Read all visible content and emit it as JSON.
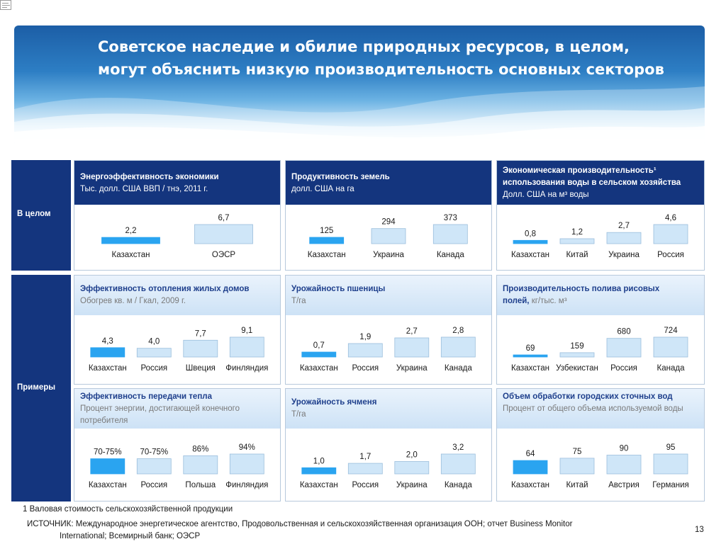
{
  "slide": {
    "title_lines": [
      "Советское наследие и обилие природных ресурсов, в целом,",
      "могут объяснить низкую производительность основных секторов"
    ],
    "row_labels": {
      "overall": "В целом",
      "examples": "Примеры"
    },
    "footnote": "1 Валовая стоимость сельскохозяйственной продукции",
    "source_lines": [
      "ИСТОЧНИК: Международное энергетическое агентство, Продовольственная и сельскохозяйственная организация ООН; отчет Business Monitor",
      "International; Всемирный банк;  ОЭСР"
    ],
    "page_number": "13",
    "colors": {
      "highlight_bar": "#2aa4f0",
      "bar": "#cfe6f8",
      "bar_border": "#9bbedc",
      "dark_header": "#14357e",
      "light_header": "#d6e8f8"
    }
  },
  "chart_data": [
    {
      "type": "bar",
      "title": "Энергоэффективность экономики",
      "subtitle": "Тыс. долл. США ВВП / тнэ, 2011 г.",
      "categories": [
        "Казахстан",
        "ОЭСР"
      ],
      "values": [
        2.2,
        6.7
      ],
      "labels": [
        "2,2",
        "6,7"
      ]
    },
    {
      "type": "bar",
      "title": "Продуктивность земель",
      "subtitle": "долл. США на га",
      "categories": [
        "Казахстан",
        "Украина",
        "Канада"
      ],
      "values": [
        125,
        294,
        373
      ],
      "labels": [
        "125",
        "294",
        "373"
      ]
    },
    {
      "type": "bar",
      "title": "Экономическая производительность¹ использования воды в сельском хозяйства",
      "subtitle": "Долл. США на м³ воды",
      "categories": [
        "Казахстан",
        "Китай",
        "Украина",
        "Россия"
      ],
      "values": [
        0.8,
        1.2,
        2.7,
        4.6
      ],
      "labels": [
        "0,8",
        "1,2",
        "2,7",
        "4,6"
      ]
    },
    {
      "type": "bar",
      "title": "Эффективность отопления жилых домов",
      "subtitle": "Обогрев кв. м / Гкал, 2009 г.",
      "categories": [
        "Казахстан",
        "Россия",
        "Швеция",
        "Финляндия"
      ],
      "values": [
        4.3,
        4.0,
        7.7,
        9.1
      ],
      "labels": [
        "4,3",
        "4,0",
        "7,7",
        "9,1"
      ]
    },
    {
      "type": "bar",
      "title": "Урожайность пшеницы",
      "subtitle": "Т/га",
      "categories": [
        "Казахстан",
        "Россия",
        "Украина",
        "Канада"
      ],
      "values": [
        0.7,
        1.9,
        2.7,
        2.8
      ],
      "labels": [
        "0,7",
        "1,9",
        "2,7",
        "2,8"
      ]
    },
    {
      "type": "bar",
      "title": "Производительность полива рисовых полей,",
      "subtitle": "кг/тыс. м³",
      "categories": [
        "Казахстан",
        "Узбекистан",
        "Россия",
        "Канада"
      ],
      "values": [
        69,
        159,
        680,
        724
      ],
      "labels": [
        "69",
        "159",
        "680",
        "724"
      ]
    },
    {
      "type": "bar",
      "title": "Эффективность передачи тепла",
      "subtitle": "Процент энергии, достигающей конечного потребителя",
      "categories": [
        "Казахстан",
        "Россия",
        "Польша",
        "Финляндия"
      ],
      "values": [
        72,
        72,
        86,
        94
      ],
      "labels": [
        "70-75%",
        "70-75%",
        "86%",
        "94%"
      ]
    },
    {
      "type": "bar",
      "title": "Урожайность ячменя",
      "subtitle": "Т/га",
      "categories": [
        "Казахстан",
        "Россия",
        "Украина",
        "Канада"
      ],
      "values": [
        1.0,
        1.7,
        2.0,
        3.2
      ],
      "labels": [
        "1,0",
        "1,7",
        "2,0",
        "3,2"
      ]
    },
    {
      "type": "bar",
      "title": "Объем обработки городских сточных вод",
      "subtitle": "Процент от общего объема используемой воды",
      "categories": [
        "Казахстан",
        "Китай",
        "Австрия",
        "Германия"
      ],
      "values": [
        64,
        75,
        90,
        95
      ],
      "labels": [
        "64",
        "75",
        "90",
        "95"
      ]
    }
  ]
}
